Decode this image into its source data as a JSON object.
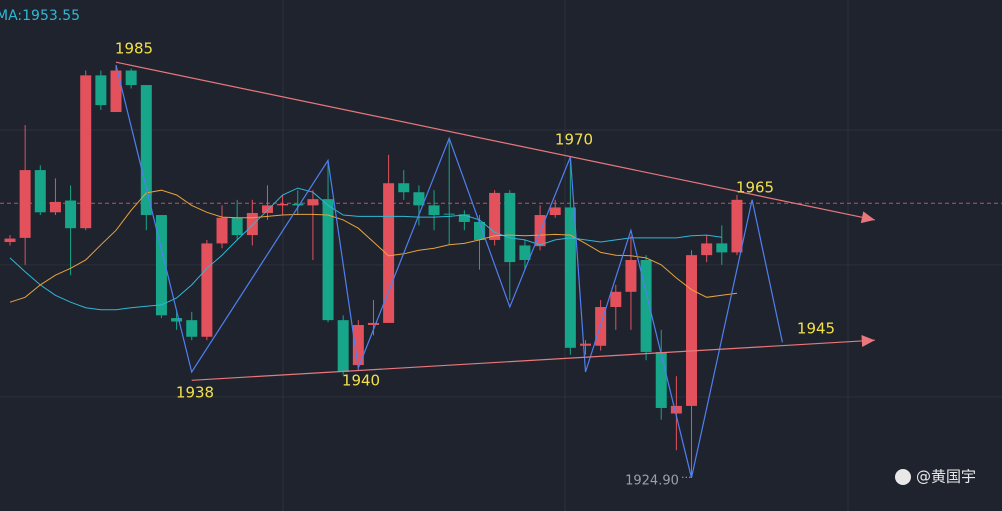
{
  "chart_data": {
    "type": "candlestick",
    "indicator_label": "MA:1953.55",
    "watermark": "@黄国宇",
    "up_color": "#e3525c",
    "down_color": "#17a68a",
    "xlim": [
      -0.66,
      65.5
    ],
    "ylim": [
      1920.1,
      1994.0
    ],
    "grid_y": [
      1975.2,
      1955.7,
      1936.6
    ],
    "open": [
      1959,
      1959.6,
      1969.4,
      1963.3,
      1965,
      1961,
      1983.1,
      1977.8,
      1983.8,
      1981.7,
      1962.9,
      1948,
      1947.7,
      1945.3,
      1958.8,
      1962.5,
      1960,
      1963.2,
      1964.3,
      1964.5,
      1964.3,
      1965.2,
      1947.7,
      1941.2,
      1947,
      1947.3,
      1967.5,
      1966.2,
      1964.3,
      1963.1,
      1963,
      1961.9,
      1959.3,
      1966.1,
      1958.5,
      1958.4,
      1962.9,
      1964,
      1944,
      1944,
      1949.6,
      1951.8,
      1956.4,
      1943.1,
      1934.2,
      1935.3,
      1957.1,
      1958.8,
      1957.5
    ],
    "high": [
      1960,
      1975.9,
      1970.1,
      1968.2,
      1967.2,
      1983.8,
      1983.8,
      1984.6,
      1984.1,
      1981.7,
      1962.9,
      1949,
      1948.9,
      1959.3,
      1964.3,
      1965.1,
      1965.1,
      1967.2,
      1965.8,
      1966.5,
      1966.5,
      1970.8,
      1948.4,
      1947.7,
      1950.6,
      1971.6,
      1969.4,
      1967.2,
      1966.5,
      1973.7,
      1963.6,
      1962.9,
      1966.5,
      1966.5,
      1959.3,
      1964.3,
      1965.1,
      1970.8,
      1944.8,
      1950.6,
      1952.8,
      1959.9,
      1957.1,
      1946.3,
      1939.6,
      1957.8,
      1960,
      1961.4,
      1965.8
    ],
    "low": [
      1958.5,
      1955.7,
      1962.9,
      1962.9,
      1954.2,
      1960.7,
      1978.1,
      1977.8,
      1981.2,
      1960.7,
      1948,
      1946.3,
      1944.8,
      1944.8,
      1958.1,
      1959.3,
      1958.5,
      1962.2,
      1962.9,
      1962.9,
      1956.4,
      1947.4,
      1939.8,
      1940.5,
      1945.5,
      1947.3,
      1965.1,
      1961.4,
      1960.7,
      1958.6,
      1960.7,
      1955,
      1958.5,
      1950.6,
      1955,
      1957.8,
      1962.5,
      1942.7,
      1942.7,
      1943.3,
      1946.3,
      1946.3,
      1941.9,
      1933.3,
      1928.9,
      1924.9,
      1956.1,
      1955.7,
      1957.1
    ],
    "close": [
      1959.5,
      1969.4,
      1963.3,
      1964.8,
      1961,
      1983.1,
      1978.8,
      1983.8,
      1981.7,
      1962.9,
      1948.4,
      1947.5,
      1945.3,
      1958.8,
      1962.5,
      1960,
      1963.2,
      1964.3,
      1964.5,
      1964.3,
      1965.2,
      1947.7,
      1940.2,
      1947,
      1947.3,
      1967.5,
      1966.2,
      1964.3,
      1962.9,
      1963,
      1961.9,
      1959.3,
      1966.1,
      1956.1,
      1956.4,
      1962.9,
      1964,
      1943.7,
      1944.3,
      1949.6,
      1951.8,
      1956.4,
      1943.1,
      1935,
      1935.3,
      1957.1,
      1958.8,
      1957.5,
      1965.1
    ],
    "ma_series": [
      {
        "color": "#2fb8d6",
        "values": [
          1956.7,
          1954.7,
          1952.8,
          1951.3,
          1950.3,
          1949.5,
          1949.2,
          1949.2,
          1949.5,
          1949.7,
          1949.9,
          1950.9,
          1952.8,
          1955.2,
          1957.1,
          1959.3,
          1961.4,
          1963.6,
          1965.8,
          1966.8,
          1966.2,
          1964.3,
          1962.9,
          1962.7,
          1962.7,
          1962.7,
          1962.7,
          1962.6,
          1962.6,
          1962.7,
          1962.9,
          1962.2,
          1960.4,
          1959.6,
          1959.3,
          1958.6,
          1959.3,
          1959.6,
          1959.3,
          1959.0,
          1959.3,
          1959.6,
          1959.6,
          1959.6,
          1959.6,
          1959.9,
          1960.0,
          1959.7,
          null
        ]
      },
      {
        "color": "#e8a33a",
        "values": [
          1950.3,
          1951.0,
          1952.8,
          1954.2,
          1955.2,
          1956.4,
          1958.6,
          1960.7,
          1963.6,
          1966.1,
          1966.5,
          1965.8,
          1964.3,
          1963.3,
          1962.6,
          1962.5,
          1962.5,
          1962.7,
          1962.9,
          1963.0,
          1963.0,
          1962.9,
          1962.2,
          1961.0,
          1959.0,
          1957.0,
          1957.3,
          1957.8,
          1958.1,
          1958.6,
          1958.8,
          1959.3,
          1959.9,
          1960.0,
          1959.9,
          1960.0,
          1960.1,
          1960.0,
          1958.8,
          1957.5,
          1957.1,
          1957.0,
          1956.7,
          1955.7,
          1953.8,
          1952.1,
          1951.0,
          1951.3,
          1951.6
        ]
      }
    ],
    "zigzag": {
      "color": "#4f7ff0",
      "x": [
        7,
        12,
        21,
        23,
        29,
        33,
        37,
        38,
        41,
        45,
        49,
        51
      ],
      "y": [
        1984.6,
        1940.2,
        1970.8,
        1940.8,
        1974.0,
        1949.6,
        1971.3,
        1940.2,
        1960.7,
        1924.9,
        1965.1,
        1944.5
      ]
    },
    "trendlines": [
      {
        "color": "#e8787c",
        "x": [
          7,
          57.1
        ],
        "y": [
          1985,
          1962.2
        ]
      },
      {
        "color": "#e8787c",
        "x": [
          12,
          57.1
        ],
        "y": [
          1939,
          1944.8
        ]
      }
    ],
    "level": {
      "value": 1964.6,
      "color": "#c0555c"
    },
    "pivot_labels": [
      1985,
      1938,
      1940,
      1970,
      1965,
      1945
    ],
    "low_label": {
      "value": 1924.9,
      "label": "1924.90"
    }
  }
}
